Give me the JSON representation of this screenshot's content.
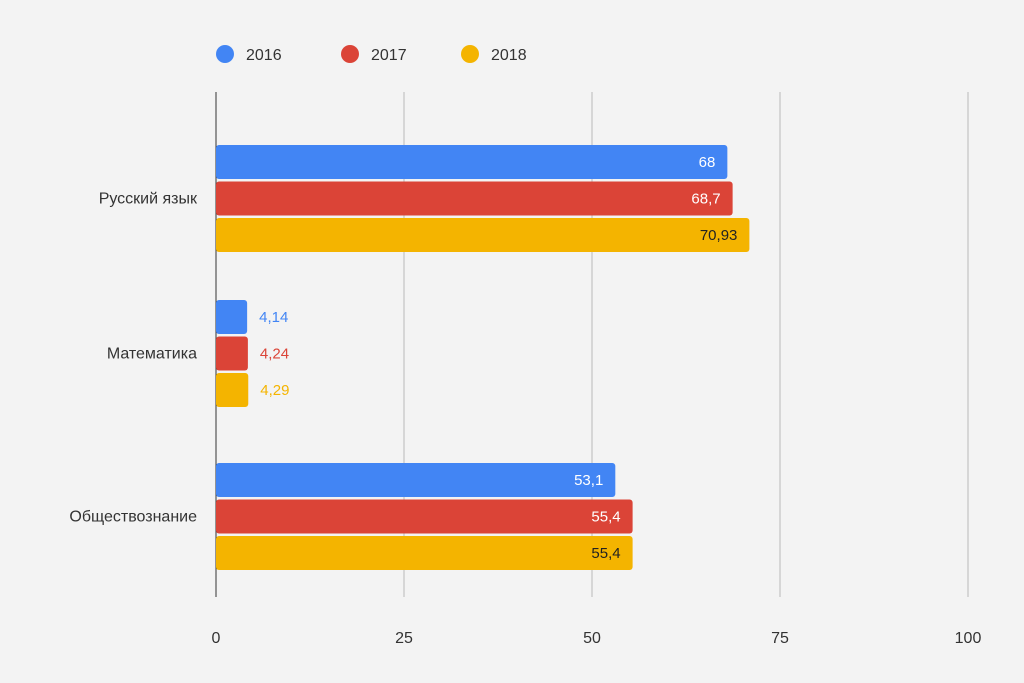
{
  "chart_data": {
    "type": "bar",
    "orientation": "horizontal",
    "categories": [
      "Русский язык",
      "Математика",
      "Обществознание"
    ],
    "series": [
      {
        "name": "2016",
        "color": "#4285f4",
        "values": [
          68,
          4.14,
          53.1
        ],
        "labels": [
          "68",
          "4,14",
          "53,1"
        ]
      },
      {
        "name": "2017",
        "color": "#db4437",
        "values": [
          68.7,
          4.24,
          55.4
        ],
        "labels": [
          "68,7",
          "4,24",
          "55,4"
        ]
      },
      {
        "name": "2018",
        "color": "#f4b400",
        "values": [
          70.93,
          4.29,
          55.4
        ],
        "labels": [
          "70,93",
          "4,29",
          "55,4"
        ]
      }
    ],
    "xlim": [
      0,
      100
    ],
    "xticks": [
      "0",
      "25",
      "50",
      "75",
      "100"
    ],
    "grid": "vertical",
    "legend": "top-left"
  }
}
